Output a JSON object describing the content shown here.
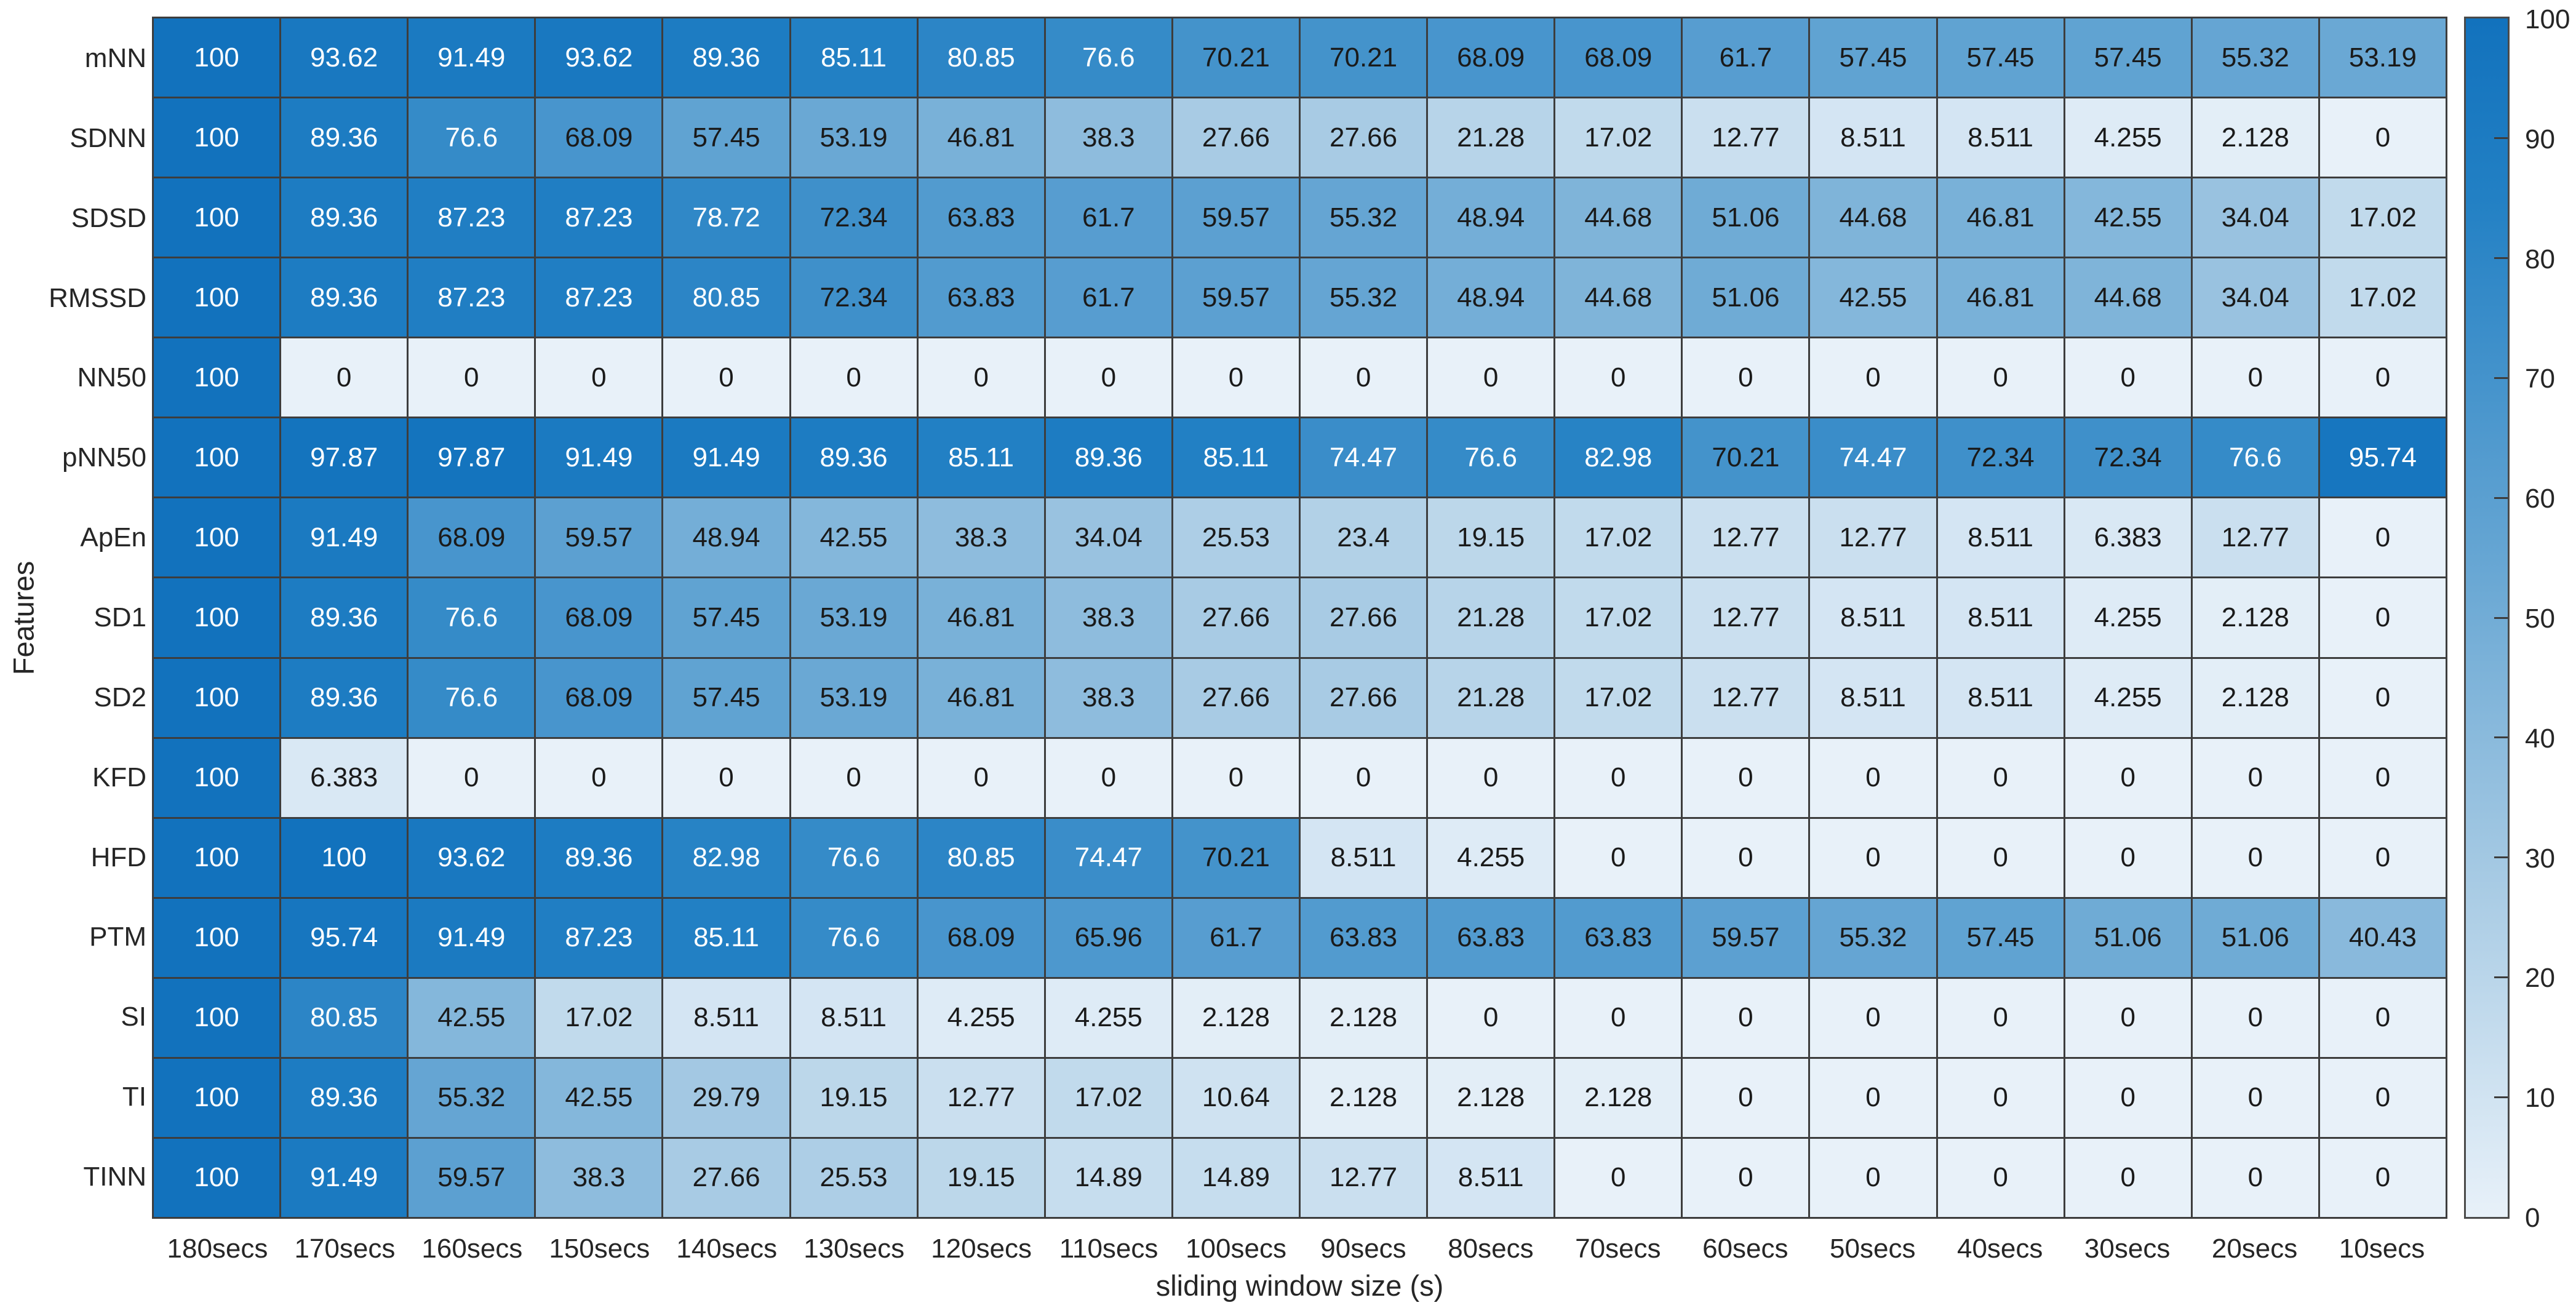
{
  "chart_data": {
    "type": "heatmap",
    "title": "",
    "xlabel": "sliding window size (s)",
    "ylabel": "Features",
    "rows": [
      "mNN",
      "SDNN",
      "SDSD",
      "RMSSD",
      "NN50",
      "pNN50",
      "ApEn",
      "SD1",
      "SD2",
      "KFD",
      "HFD",
      "PTM",
      "SI",
      "TI",
      "TINN"
    ],
    "columns": [
      "180secs",
      "170secs",
      "160secs",
      "150secs",
      "140secs",
      "130secs",
      "120secs",
      "110secs",
      "100secs",
      "90secs",
      "80secs",
      "70secs",
      "60secs",
      "50secs",
      "40secs",
      "30secs",
      "20secs",
      "10secs"
    ],
    "values": [
      [
        100,
        93.62,
        91.49,
        93.62,
        89.36,
        85.11,
        80.85,
        76.6,
        70.21,
        70.21,
        68.09,
        68.09,
        61.7,
        57.45,
        57.45,
        57.45,
        55.32,
        53.19
      ],
      [
        100,
        89.36,
        76.6,
        68.09,
        57.45,
        53.19,
        46.81,
        38.3,
        27.66,
        27.66,
        21.28,
        17.02,
        12.77,
        8.511,
        8.511,
        4.255,
        2.128,
        0
      ],
      [
        100,
        89.36,
        87.23,
        87.23,
        78.72,
        72.34,
        63.83,
        61.7,
        59.57,
        55.32,
        48.94,
        44.68,
        51.06,
        44.68,
        46.81,
        42.55,
        34.04,
        17.02
      ],
      [
        100,
        89.36,
        87.23,
        87.23,
        80.85,
        72.34,
        63.83,
        61.7,
        59.57,
        55.32,
        48.94,
        44.68,
        51.06,
        42.55,
        46.81,
        44.68,
        34.04,
        17.02
      ],
      [
        100,
        0,
        0,
        0,
        0,
        0,
        0,
        0,
        0,
        0,
        0,
        0,
        0,
        0,
        0,
        0,
        0,
        0
      ],
      [
        100,
        97.87,
        97.87,
        91.49,
        91.49,
        89.36,
        85.11,
        89.36,
        85.11,
        74.47,
        76.6,
        82.98,
        70.21,
        74.47,
        72.34,
        72.34,
        76.6,
        95.74
      ],
      [
        100,
        91.49,
        68.09,
        59.57,
        48.94,
        42.55,
        38.3,
        34.04,
        25.53,
        23.4,
        19.15,
        17.02,
        12.77,
        12.77,
        8.511,
        6.383,
        12.77,
        0
      ],
      [
        100,
        89.36,
        76.6,
        68.09,
        57.45,
        53.19,
        46.81,
        38.3,
        27.66,
        27.66,
        21.28,
        17.02,
        12.77,
        8.511,
        8.511,
        4.255,
        2.128,
        0
      ],
      [
        100,
        89.36,
        76.6,
        68.09,
        57.45,
        53.19,
        46.81,
        38.3,
        27.66,
        27.66,
        21.28,
        17.02,
        12.77,
        8.511,
        8.511,
        4.255,
        2.128,
        0
      ],
      [
        100,
        6.383,
        0,
        0,
        0,
        0,
        0,
        0,
        0,
        0,
        0,
        0,
        0,
        0,
        0,
        0,
        0,
        0
      ],
      [
        100,
        100,
        93.62,
        89.36,
        82.98,
        76.6,
        80.85,
        74.47,
        70.21,
        8.511,
        4.255,
        0,
        0,
        0,
        0,
        0,
        0,
        0
      ],
      [
        100,
        95.74,
        91.49,
        87.23,
        85.11,
        76.6,
        68.09,
        65.96,
        61.7,
        63.83,
        63.83,
        63.83,
        59.57,
        55.32,
        57.45,
        51.06,
        51.06,
        40.43
      ],
      [
        100,
        80.85,
        42.55,
        17.02,
        8.511,
        8.511,
        4.255,
        4.255,
        2.128,
        2.128,
        0,
        0,
        0,
        0,
        0,
        0,
        0,
        0
      ],
      [
        100,
        89.36,
        55.32,
        42.55,
        29.79,
        19.15,
        12.77,
        17.02,
        10.64,
        2.128,
        2.128,
        2.128,
        0,
        0,
        0,
        0,
        0,
        0
      ],
      [
        100,
        91.49,
        59.57,
        38.3,
        27.66,
        25.53,
        19.15,
        14.89,
        14.89,
        12.77,
        8.511,
        0,
        0,
        0,
        0,
        0,
        0,
        0
      ]
    ],
    "value_range": [
      0,
      100
    ],
    "grid": true,
    "legend_position": "right-colorbar",
    "colorbar_ticks": [
      0,
      10,
      20,
      30,
      40,
      50,
      60,
      70,
      80,
      90,
      100
    ],
    "colormap_stops": [
      {
        "value": 0,
        "color": "#e8f1f9"
      },
      {
        "value": 27.66,
        "color": "#a8cbe4"
      },
      {
        "value": 53.19,
        "color": "#6aa8d4"
      },
      {
        "value": 85.11,
        "color": "#2280c4"
      },
      {
        "value": 100,
        "color": "#1272bd"
      }
    ],
    "text_colors": {
      "dark": "#1a1a1a",
      "light": "#ffffff"
    }
  }
}
